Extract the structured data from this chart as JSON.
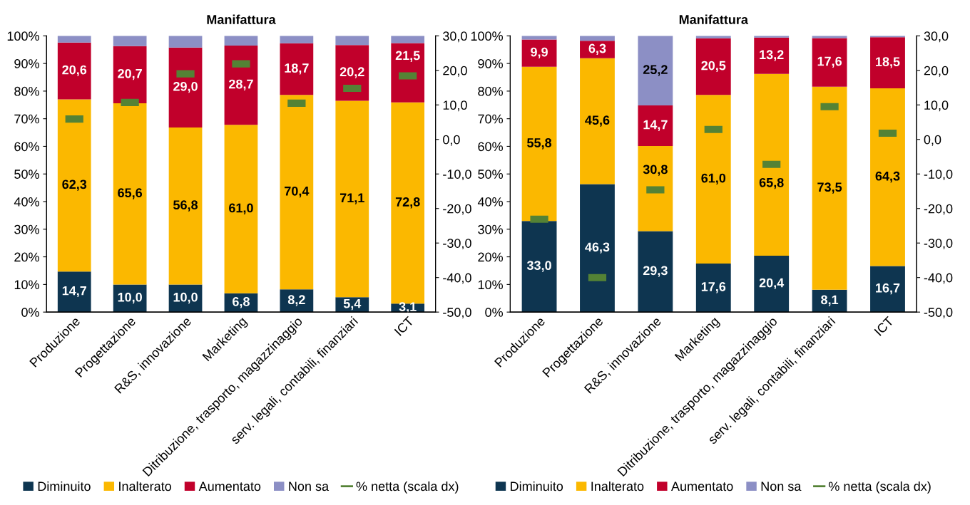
{
  "chart_data": [
    {
      "type": "bar",
      "stacked": true,
      "title": "Manifattura",
      "categories": [
        "Produzione",
        "Progettazione",
        "R&S, innovazione",
        "Marketing",
        "Ditribuzione, trasporto, magazzinaggio",
        "serv. legali, contabili, finanziari",
        "ICT"
      ],
      "ylim": [
        0,
        100
      ],
      "yticks": [
        {
          "value": 0,
          "label": "0%"
        },
        {
          "value": 10,
          "label": "10%"
        },
        {
          "value": 20,
          "label": "20%"
        },
        {
          "value": 30,
          "label": "30%"
        },
        {
          "value": 40,
          "label": "40%"
        },
        {
          "value": 50,
          "label": "50%"
        },
        {
          "value": 60,
          "label": "60%"
        },
        {
          "value": 70,
          "label": "70%"
        },
        {
          "value": 80,
          "label": "80%"
        },
        {
          "value": 90,
          "label": "90%"
        },
        {
          "value": 100,
          "label": "100%"
        }
      ],
      "y2lim": [
        -50,
        30
      ],
      "y2ticks": [
        {
          "value": -50,
          "label": "-50,0"
        },
        {
          "value": -40,
          "label": "-40,0"
        },
        {
          "value": -30,
          "label": "-30,0"
        },
        {
          "value": -20,
          "label": "-20,0"
        },
        {
          "value": -10,
          "label": "-10,0"
        },
        {
          "value": 0,
          "label": "0,0"
        },
        {
          "value": 10,
          "label": "10,0"
        },
        {
          "value": 20,
          "label": "20,0"
        },
        {
          "value": 30,
          "label": "30,0"
        }
      ],
      "grid": false,
      "legend": "bottom",
      "series": [
        {
          "name": "Diminuito",
          "color": "#0e3550",
          "values": [
            14.7,
            10.0,
            10.0,
            6.8,
            8.2,
            5.4,
            3.1
          ],
          "value_labels": [
            "14,7",
            "10,0",
            "10,0",
            "6,8",
            "8,2",
            "5,4",
            "3,1"
          ]
        },
        {
          "name": "Inalterato",
          "color": "#fbb800",
          "values": [
            62.3,
            65.6,
            56.8,
            61.0,
            70.4,
            71.1,
            72.8
          ],
          "value_labels": [
            "62,3",
            "65,6",
            "56,8",
            "61,0",
            "70,4",
            "71,1",
            "72,8"
          ]
        },
        {
          "name": "Aumentato",
          "color": "#c1002b",
          "values": [
            20.6,
            20.7,
            29.0,
            28.7,
            18.7,
            20.2,
            21.5
          ],
          "value_labels": [
            "20,6",
            "20,7",
            "29,0",
            "28,7",
            "18,7",
            "20,2",
            "21,5"
          ]
        },
        {
          "name": "Non sa",
          "color": "#8c8fc5",
          "values": [
            2.4,
            3.7,
            4.2,
            3.5,
            2.7,
            3.3,
            2.6
          ]
        },
        {
          "name": "% netta (scala dx)",
          "type": "scatter",
          "axis": "y2",
          "color": "#548235",
          "values": [
            5.9,
            10.7,
            19.0,
            21.9,
            10.5,
            14.8,
            18.4
          ]
        }
      ]
    },
    {
      "type": "bar",
      "stacked": true,
      "title": "Manifattura",
      "categories": [
        "Produzione",
        "Progettazione",
        "R&S, innovazione",
        "Marketing",
        "Ditribuzione, trasporto, magazzinaggio",
        "serv. legali, contabili, finanziari",
        "ICT"
      ],
      "ylim": [
        0,
        100
      ],
      "yticks": [
        {
          "value": 0,
          "label": "0%"
        },
        {
          "value": 10,
          "label": "10%"
        },
        {
          "value": 20,
          "label": "20%"
        },
        {
          "value": 30,
          "label": "30%"
        },
        {
          "value": 40,
          "label": "40%"
        },
        {
          "value": 50,
          "label": "50%"
        },
        {
          "value": 60,
          "label": "60%"
        },
        {
          "value": 70,
          "label": "70%"
        },
        {
          "value": 80,
          "label": "80%"
        },
        {
          "value": 90,
          "label": "90%"
        },
        {
          "value": 100,
          "label": "100%"
        }
      ],
      "y2lim": [
        -50,
        30
      ],
      "y2ticks": [
        {
          "value": -50,
          "label": "-50,0"
        },
        {
          "value": -40,
          "label": "-40,0"
        },
        {
          "value": -30,
          "label": "-30,0"
        },
        {
          "value": -20,
          "label": "-20,0"
        },
        {
          "value": -10,
          "label": "-10,0"
        },
        {
          "value": 0,
          "label": "0,0"
        },
        {
          "value": 10,
          "label": "10,0"
        },
        {
          "value": 20,
          "label": "20,0"
        },
        {
          "value": 30,
          "label": "30,0"
        }
      ],
      "grid": false,
      "legend": "bottom",
      "series": [
        {
          "name": "Diminuito",
          "color": "#0e3550",
          "values": [
            33.0,
            46.3,
            29.3,
            17.6,
            20.4,
            8.1,
            16.7
          ],
          "value_labels": [
            "33,0",
            "46,3",
            "29,3",
            "17,6",
            "20,4",
            "8,1",
            "16,7"
          ]
        },
        {
          "name": "Inalterato",
          "color": "#fbb800",
          "values": [
            55.8,
            45.6,
            30.8,
            61.0,
            65.8,
            73.5,
            64.3
          ],
          "value_labels": [
            "55,8",
            "45,6",
            "30,8",
            "61,0",
            "65,8",
            "73,5",
            "64,3"
          ]
        },
        {
          "name": "Aumentato",
          "color": "#c1002b",
          "values": [
            9.9,
            6.3,
            14.7,
            20.5,
            13.2,
            17.6,
            18.5
          ],
          "value_labels": [
            "9,9",
            "6,3",
            "14,7",
            "20,5",
            "13,2",
            "17,6",
            "18,5"
          ]
        },
        {
          "name": "Non sa",
          "color": "#8c8fc5",
          "values": [
            1.3,
            1.8,
            25.2,
            0.9,
            0.6,
            0.8,
            0.5
          ],
          "value_labels": [
            null,
            null,
            "25,2",
            null,
            null,
            null,
            null
          ]
        },
        {
          "name": "% netta (scala dx)",
          "type": "scatter",
          "axis": "y2",
          "color": "#548235",
          "values": [
            -23.1,
            -40.0,
            -14.6,
            2.9,
            -7.2,
            9.5,
            1.8
          ]
        }
      ]
    }
  ]
}
